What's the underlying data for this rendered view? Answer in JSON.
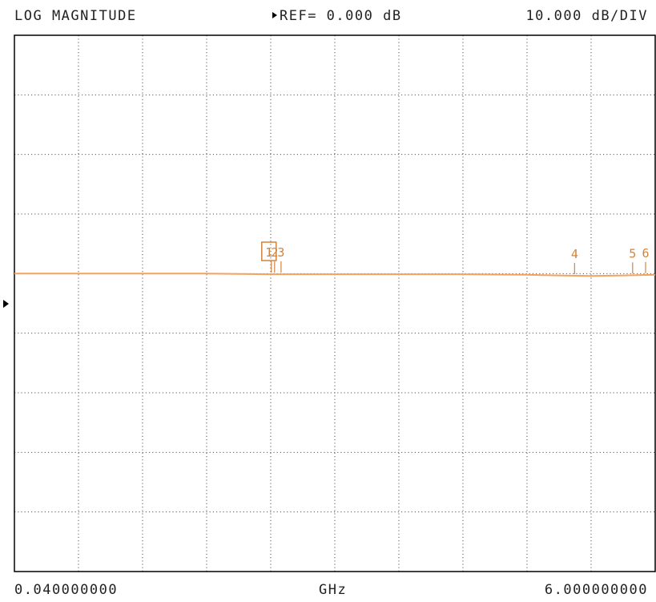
{
  "header": {
    "mode": "LOG MAGNITUDE",
    "ref": "REF= 0.000 dB",
    "scale": "10.000 dB/DIV"
  },
  "footer": {
    "start": "0.040000000",
    "unit": "GHz",
    "stop": "6.000000000"
  },
  "colors": {
    "trace": "#f5a25a",
    "grid": "#555555",
    "marker": "#d2843c",
    "frame": "#000000"
  },
  "chart_data": {
    "type": "line",
    "title": "LOG MAGNITUDE",
    "xlabel": "GHz",
    "ylabel": "",
    "xlim": [
      0.04,
      6.0
    ],
    "ylim": [
      -50,
      40
    ],
    "divisions_x": 10,
    "divisions_y": 9,
    "grid": true,
    "ref_level_db": 0.0,
    "scale_db_per_div": 10.0,
    "series": [
      {
        "values_x": [
          0.04,
          0.6,
          1.2,
          1.8,
          2.4,
          3.0,
          3.6,
          4.2,
          4.8,
          5.1,
          5.4,
          5.7,
          6.0
        ],
        "values_y": [
          0.0,
          0.0,
          0.0,
          0.0,
          -0.1,
          -0.1,
          -0.1,
          -0.1,
          -0.2,
          -0.3,
          -0.4,
          -0.3,
          -0.2
        ]
      }
    ],
    "markers": [
      {
        "label": "1",
        "x": 2.43,
        "active": true
      },
      {
        "label": "2",
        "x": 2.46
      },
      {
        "label": "3",
        "x": 2.52
      },
      {
        "label": "4",
        "x": 5.25
      },
      {
        "label": "5",
        "x": 5.79
      },
      {
        "label": "6",
        "x": 6.0
      }
    ]
  }
}
